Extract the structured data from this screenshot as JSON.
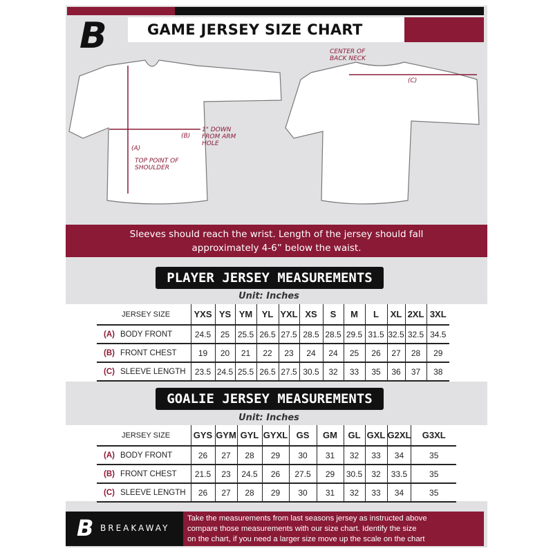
{
  "header": {
    "title": "GAME JERSEY SIZE CHART",
    "logo": "B"
  },
  "colors": {
    "accent": "#8a1a36",
    "dark": "#111111",
    "background": "#e1e1e3"
  },
  "diagram": {
    "label_a": "(A)",
    "label_a_desc": "TOP POINT OF SHOULDER",
    "label_b": "(B)",
    "label_b_desc": "1\" DOWN FROM ARM HOLE",
    "label_c": "(C)",
    "label_c_desc": "CENTER OF BACK NECK"
  },
  "note": {
    "line1": "Sleeves should reach the wrist. Length of the jersey should fall",
    "line2": "approximately 4-6” below the waist."
  },
  "player": {
    "title": "PLAYER JERSEY MEASUREMENTS",
    "unit": "Unit: Inches",
    "header_label": "JERSEY SIZE",
    "sizes": [
      "YXS",
      "YS",
      "YM",
      "YL",
      "YXL",
      "XS",
      "S",
      "M",
      "L",
      "XL",
      "2XL",
      "3XL"
    ],
    "rows": [
      {
        "letter": "(A)",
        "label": "BODY FRONT",
        "values": [
          "24.5",
          "25",
          "25.5",
          "26.5",
          "27.5",
          "28.5",
          "28.5",
          "29.5",
          "31.5",
          "32.5",
          "32.5",
          "34.5"
        ]
      },
      {
        "letter": "(B)",
        "label": "FRONT CHEST",
        "values": [
          "19",
          "20",
          "21",
          "22",
          "23",
          "24",
          "24",
          "25",
          "26",
          "27",
          "28",
          "29"
        ]
      },
      {
        "letter": "(C)",
        "label": "SLEEVE LENGTH",
        "values": [
          "23.5",
          "24.5",
          "25.5",
          "26.5",
          "27.5",
          "30.5",
          "32",
          "33",
          "35",
          "36",
          "37",
          "38"
        ]
      }
    ]
  },
  "goalie": {
    "title": "GOALIE JERSEY MEASUREMENTS",
    "unit": "Unit: Inches",
    "header_label": "JERSEY SIZE",
    "sizes": [
      "GYS",
      "GYM",
      "GYL",
      "GYXL",
      "GS",
      "GM",
      "GL",
      "GXL",
      "G2XL",
      "G3XL"
    ],
    "rows": [
      {
        "letter": "(A)",
        "label": "BODY FRONT",
        "values": [
          "26",
          "27",
          "28",
          "29",
          "30",
          "31",
          "32",
          "33",
          "34",
          "35"
        ]
      },
      {
        "letter": "(B)",
        "label": "FRONT CHEST",
        "values": [
          "21.5",
          "23",
          "24.5",
          "26",
          "27.5",
          "29",
          "30.5",
          "32",
          "33.5",
          "35"
        ]
      },
      {
        "letter": "(C)",
        "label": "SLEEVE LENGTH",
        "values": [
          "26",
          "27",
          "28",
          "29",
          "30",
          "31",
          "32",
          "33",
          "34",
          "35"
        ]
      }
    ]
  },
  "footer": {
    "brand": "BREAKAWAY",
    "text1": "Take the measurements from last seasons jersey as instructed above",
    "text2": "compare those measurements  with our size chart. Identify the size",
    "text3": "on the chart, if you need a larger size move up the scale on the chart"
  }
}
